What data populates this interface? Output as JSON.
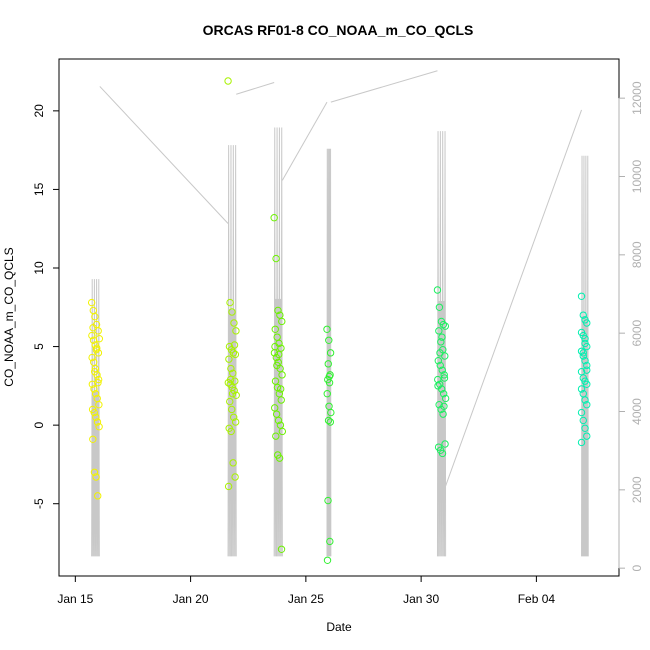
{
  "chart_data": {
    "type": "scatter",
    "title": "ORCAS RF01-8 CO_NOAA_m_CO_QCLS",
    "xlabel": "Date",
    "ylabel": "CO_NOAA_m_CO_QCLS",
    "xlim": [
      "2016-01-14T07:00",
      "2016-02-07T14:00"
    ],
    "ylim": [
      -9.6,
      23.3
    ],
    "y2lim": [
      -200,
      13000
    ],
    "x_ticks": [
      {
        "date": "2016-01-15",
        "label": "Jan 15"
      },
      {
        "date": "2016-01-20",
        "label": "Jan 20"
      },
      {
        "date": "2016-01-25",
        "label": "Jan 25"
      },
      {
        "date": "2016-01-30",
        "label": "Jan 30"
      },
      {
        "date": "2016-02-04",
        "label": "Feb 04"
      }
    ],
    "y_ticks": [
      -5,
      0,
      5,
      10,
      15,
      20
    ],
    "y2_ticks": [
      0,
      2000,
      4000,
      6000,
      8000,
      10000,
      12000
    ],
    "grid": false,
    "colors": {
      "altitude_line": "#c8c8c8",
      "right_axis": "#b0b0b0",
      "frame": "#000000"
    },
    "flights": [
      {
        "start": "2016-01-15T17:00",
        "end": "2016-01-16T01:00",
        "color": "#f2f200",
        "values": [
          7.8,
          7.3,
          6.9,
          6.4,
          6.0,
          5.7,
          5.4,
          5.1,
          4.9,
          4.6,
          4.3,
          4.0,
          3.6,
          3.2,
          2.9,
          2.6,
          2.3,
          2.0,
          1.7,
          1.3,
          1.0,
          0.8,
          0.5,
          0.2,
          -0.1,
          -0.9,
          -3.0,
          -3.3,
          -4.5,
          5.5,
          6.2,
          3.4,
          4.8,
          2.7
        ]
      },
      {
        "start": "2016-01-21T15:00",
        "end": "2016-01-21T23:30",
        "color": "#a8f200",
        "values": [
          21.9,
          7.8,
          7.2,
          6.5,
          6.0,
          5.0,
          4.8,
          4.6,
          4.5,
          4.2,
          3.6,
          3.3,
          2.8,
          2.7,
          2.6,
          2.4,
          2.2,
          1.9,
          1.5,
          1.0,
          0.5,
          0.2,
          -0.2,
          -0.4,
          -2.4,
          -3.3,
          -3.9,
          2.9,
          2.0,
          5.1
        ]
      },
      {
        "start": "2016-01-23T15:00",
        "end": "2016-01-23T23:30",
        "color": "#6cf200",
        "values": [
          13.2,
          10.6,
          7.3,
          7.0,
          6.6,
          6.1,
          5.6,
          5.2,
          4.9,
          4.6,
          4.3,
          4.0,
          3.6,
          3.2,
          2.8,
          2.4,
          2.0,
          1.6,
          1.1,
          0.7,
          0.3,
          0.0,
          -0.4,
          -0.7,
          -1.9,
          -2.1,
          -7.9,
          5.0,
          3.8,
          4.5,
          2.3
        ]
      },
      {
        "start": "2016-01-25T22:00",
        "end": "2016-01-26T02:00",
        "color": "#30f030",
        "values": [
          6.1,
          5.4,
          4.6,
          3.9,
          3.2,
          2.9,
          2.7,
          2.0,
          1.2,
          0.8,
          0.3,
          0.2,
          -4.8,
          -7.4,
          -8.6,
          3.1
        ]
      },
      {
        "start": "2016-01-30T17:00",
        "end": "2016-01-31T01:30",
        "color": "#1cf060",
        "values": [
          8.6,
          7.5,
          6.6,
          6.4,
          6.3,
          6.0,
          5.3,
          4.8,
          4.4,
          4.1,
          3.8,
          3.5,
          3.2,
          2.9,
          2.6,
          2.3,
          2.0,
          1.7,
          1.3,
          1.0,
          0.7,
          -1.2,
          -1.4,
          -1.6,
          -1.8,
          3.0,
          2.5,
          4.6,
          5.6,
          1.2
        ]
      },
      {
        "start": "2016-02-05T23:00",
        "end": "2016-02-06T06:00",
        "color": "#00f0b0",
        "values": [
          8.2,
          7.0,
          6.7,
          6.5,
          5.9,
          5.7,
          5.5,
          5.0,
          4.7,
          4.4,
          4.1,
          3.8,
          3.4,
          3.0,
          2.8,
          2.6,
          2.3,
          2.0,
          1.6,
          1.3,
          0.8,
          0.3,
          -0.2,
          -0.7,
          -1.1,
          4.6,
          5.2,
          3.5
        ]
      }
    ],
    "altitude_connections": [
      {
        "from": [
          "2016-01-16T01:30",
          12300
        ],
        "to": [
          "2016-01-21T15:00",
          8800
        ]
      },
      {
        "from": [
          "2016-01-21T23:30",
          12100
        ],
        "to": [
          "2016-01-23T15:00",
          12400
        ]
      },
      {
        "from": [
          "2016-01-23T23:30",
          9900
        ],
        "to": [
          "2016-01-25T22:00",
          11900
        ]
      },
      {
        "from": [
          "2016-01-26T02:00",
          11900
        ],
        "to": [
          "2016-01-30T17:00",
          12700
        ]
      },
      {
        "from": [
          "2016-01-31T01:30",
          2100
        ],
        "to": [
          "2016-02-05T23:00",
          11700
        ]
      }
    ],
    "flight_altitude_peaks": [
      8200,
      12000,
      12500,
      11900,
      12400,
      11700
    ]
  }
}
